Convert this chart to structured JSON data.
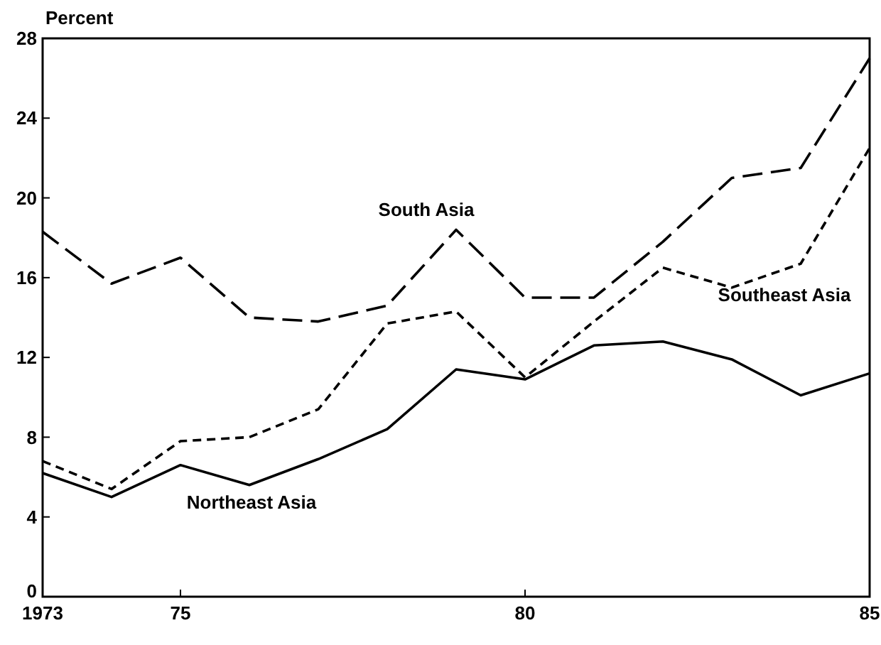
{
  "chart_data": {
    "type": "line",
    "ylabel": "Percent",
    "x": [
      1973,
      1974,
      1975,
      1976,
      1977,
      1978,
      1979,
      1980,
      1981,
      1982,
      1983,
      1984,
      1985
    ],
    "xlim": [
      1973,
      1985
    ],
    "xticks": [
      1973,
      {
        "value": 1975,
        "label": "75"
      },
      {
        "value": 1980,
        "label": "80"
      },
      {
        "value": 1985,
        "label": "85"
      }
    ],
    "ylim": [
      0,
      28
    ],
    "yticks": [
      0,
      4,
      8,
      12,
      16,
      20,
      24,
      28
    ],
    "grid": false,
    "marker": "none",
    "series": [
      {
        "name": "South Asia",
        "color": "#000000",
        "line_style": "dashed",
        "values": [
          18.3,
          15.7,
          17,
          14,
          13.8,
          14.6,
          18.4,
          15,
          15,
          17.8,
          21,
          21.5,
          27
        ]
      },
      {
        "name": "Southeast Asia",
        "color": "#000000",
        "line_style": "dotted",
        "values": [
          6.8,
          5.4,
          7.8,
          8,
          9.4,
          13.7,
          14.3,
          11,
          13.8,
          16.5,
          15.5,
          16.7,
          22.5
        ]
      },
      {
        "name": "Northeast Asia",
        "color": "#000000",
        "line_style": "solid",
        "values": [
          6.2,
          5,
          6.6,
          5.6,
          6.9,
          8.4,
          11.4,
          10.9,
          12.6,
          12.8,
          11.9,
          10.1,
          11.2
        ]
      }
    ]
  }
}
